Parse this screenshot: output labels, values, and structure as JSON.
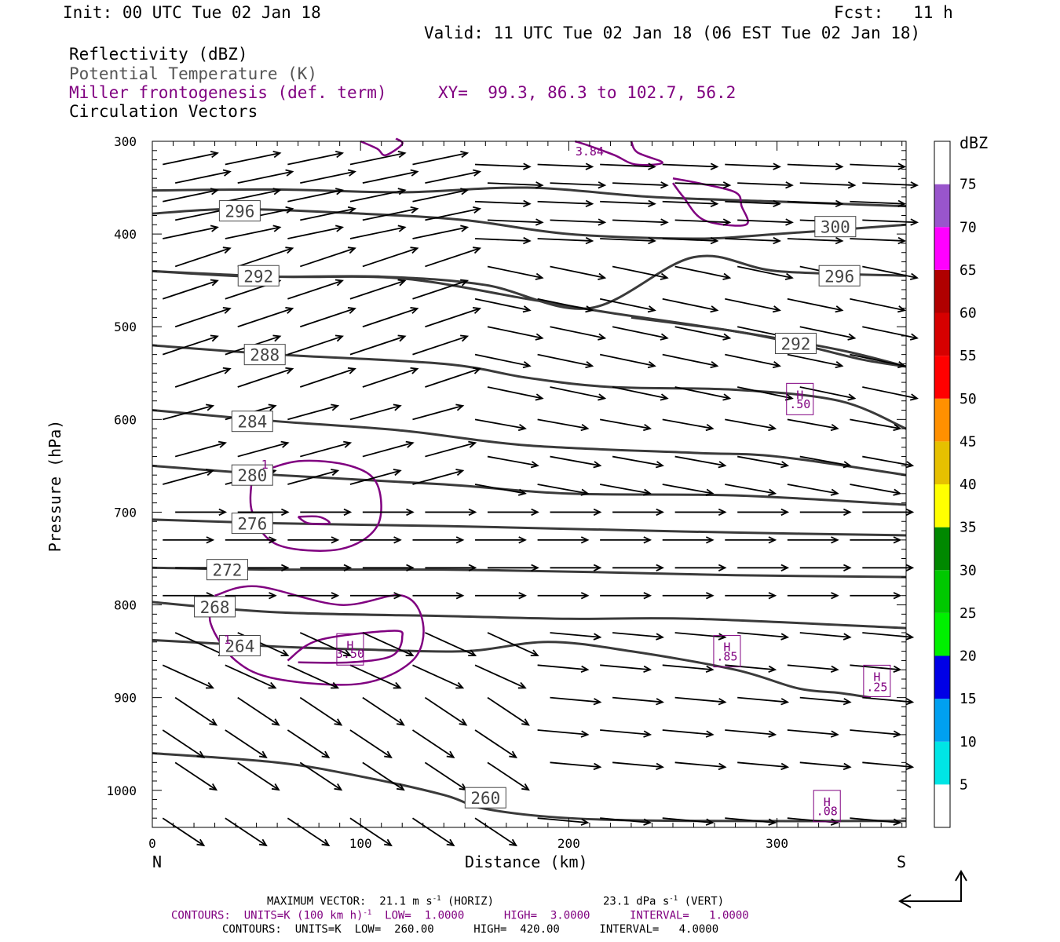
{
  "header": {
    "init": "Init: 00 UTC Tue 02 Jan 18",
    "fcst": "Fcst:   11 h",
    "valid": "Valid: 11 UTC Tue 02 Jan 18 (06 EST Tue 02 Jan 18)",
    "field1": "Reflectivity (dBZ)",
    "field2": "Potential Temperature (K)",
    "field3": "Miller frontogenesis (def. term)",
    "xy": "XY=  99.3, 86.3 to 102.7, 56.2",
    "field4": "Circulation Vectors"
  },
  "colors": {
    "theta": "#3a3a3a",
    "fronto": "#800080",
    "vector": "#000000",
    "subtitle_gray": "#555555"
  },
  "footer": {
    "max_vector": "MAXIMUM VECTOR:  21.1 m s",
    "max_vector_unit_sup": "-1",
    "horiz": " (HORIZ)",
    "vert_value": "23.1 dPa s",
    "vert_unit_sup": "-1",
    "vert": " (VERT)",
    "contours_purple_a": "CONTOURS:  UNITS=K (100 km h)",
    "contours_purple_sup": "-1",
    "contours_purple_b": "  LOW=  1.0000      HIGH=  3.0000      INTERVAL=   1.0000",
    "contours_black": "CONTOURS:  UNITS=K  LOW=  260.00      HIGH=  420.00      INTERVAL=   4.0000"
  },
  "chart_data": {
    "type": "contour",
    "ylabel": "Pressure (hPa)",
    "xlabel": "Distance (km)",
    "x_left_label": "N",
    "x_right_label": "S",
    "xlim": [
      0,
      362
    ],
    "ylim": [
      1040,
      300
    ],
    "x_ticks": [
      0,
      100,
      200,
      300
    ],
    "y_ticks": [
      300,
      400,
      500,
      600,
      700,
      800,
      900,
      1000
    ],
    "colorbar": {
      "title": "dBZ",
      "levels": [
        5,
        10,
        15,
        20,
        25,
        30,
        35,
        40,
        45,
        50,
        55,
        60,
        65,
        70,
        75
      ],
      "colors": [
        "#ffffff",
        "#00e5e5",
        "#00a0f0",
        "#0000e6",
        "#00f000",
        "#00c800",
        "#008800",
        "#ffff00",
        "#e6c000",
        "#ff9000",
        "#ff0000",
        "#d60000",
        "#b00000",
        "#ff00ff",
        "#9955cc",
        "#ffffff"
      ]
    },
    "theta_contours": [
      {
        "value": 296,
        "label_x": 42,
        "label_y": 375,
        "points": [
          [
            0,
            378
          ],
          [
            40,
            373
          ],
          [
            100,
            378
          ],
          [
            150,
            385
          ],
          [
            200,
            400
          ],
          [
            260,
            405
          ],
          [
            300,
            400
          ],
          [
            362,
            390
          ]
        ]
      },
      {
        "value": 300,
        "label_x": 328,
        "label_y": 392,
        "points": [
          [
            0,
            353
          ],
          [
            60,
            352
          ],
          [
            120,
            355
          ],
          [
            180,
            350
          ],
          [
            240,
            360
          ],
          [
            300,
            365
          ],
          [
            362,
            370
          ]
        ]
      },
      {
        "value": 296,
        "label_x": 330,
        "label_y": 445,
        "points": [
          [
            0,
            440
          ],
          [
            50,
            446
          ],
          [
            110,
            446
          ],
          [
            160,
            455
          ],
          [
            210,
            480
          ],
          [
            260,
            425
          ],
          [
            300,
            440
          ],
          [
            362,
            445
          ]
        ]
      },
      {
        "value": 292,
        "label_x": 51,
        "label_y": 445,
        "points": [
          [
            0,
            440
          ],
          [
            60,
            446
          ],
          [
            120,
            448
          ],
          [
            180,
            470
          ],
          [
            220,
            485
          ],
          [
            280,
            505
          ],
          [
            330,
            525
          ],
          [
            362,
            543
          ]
        ]
      },
      {
        "value": 292,
        "label_x": 309,
        "label_y": 518,
        "points": [
          [
            230,
            490
          ],
          [
            280,
            505
          ],
          [
            309,
            518
          ],
          [
            340,
            535
          ],
          [
            362,
            543
          ]
        ]
      },
      {
        "value": 288,
        "label_x": 54,
        "label_y": 530,
        "points": [
          [
            0,
            520
          ],
          [
            60,
            530
          ],
          [
            140,
            540
          ],
          [
            180,
            555
          ],
          [
            220,
            565
          ],
          [
            280,
            568
          ],
          [
            330,
            580
          ],
          [
            362,
            610
          ]
        ]
      },
      {
        "value": 284,
        "label_x": 48,
        "label_y": 602,
        "points": [
          [
            0,
            590
          ],
          [
            60,
            602
          ],
          [
            120,
            612
          ],
          [
            180,
            628
          ],
          [
            260,
            636
          ],
          [
            300,
            640
          ],
          [
            362,
            660
          ]
        ]
      },
      {
        "value": 280,
        "label_x": 48,
        "label_y": 660,
        "points": [
          [
            0,
            650
          ],
          [
            60,
            660
          ],
          [
            140,
            670
          ],
          [
            200,
            680
          ],
          [
            280,
            682
          ],
          [
            362,
            692
          ]
        ]
      },
      {
        "value": 276,
        "label_x": 48,
        "label_y": 712,
        "points": [
          [
            0,
            708
          ],
          [
            60,
            712
          ],
          [
            140,
            715
          ],
          [
            200,
            718
          ],
          [
            280,
            722
          ],
          [
            362,
            725
          ]
        ]
      },
      {
        "value": 272,
        "label_x": 36,
        "label_y": 762,
        "points": [
          [
            0,
            760
          ],
          [
            60,
            762
          ],
          [
            140,
            762
          ],
          [
            220,
            765
          ],
          [
            280,
            768
          ],
          [
            362,
            770
          ]
        ]
      },
      {
        "value": 268,
        "label_x": 30,
        "label_y": 802,
        "points": [
          [
            0,
            797
          ],
          [
            60,
            808
          ],
          [
            140,
            812
          ],
          [
            200,
            815
          ],
          [
            260,
            815
          ],
          [
            362,
            825
          ]
        ]
      },
      {
        "value": 264,
        "label_x": 42,
        "label_y": 844,
        "points": [
          [
            0,
            838
          ],
          [
            60,
            845
          ],
          [
            100,
            848
          ],
          [
            150,
            850
          ],
          [
            190,
            840
          ],
          [
            230,
            850
          ],
          [
            280,
            870
          ],
          [
            310,
            890
          ],
          [
            330,
            895
          ],
          [
            345,
            900
          ]
        ]
      },
      {
        "value": 260,
        "label_x": 160,
        "label_y": 1008,
        "points": [
          [
            0,
            960
          ],
          [
            60,
            970
          ],
          [
            100,
            985
          ],
          [
            140,
            1005
          ],
          [
            160,
            1020
          ],
          [
            200,
            1030
          ],
          [
            260,
            1033
          ],
          [
            362,
            1033
          ]
        ]
      }
    ],
    "fronto_contours_labels": [
      {
        "text": "3.84",
        "x": 210,
        "y": 310
      },
      {
        "text": "1",
        "x": 54,
        "y": 648
      },
      {
        "text": "1",
        "x": 36,
        "y": 837
      },
      {
        "text": "H",
        "x": 95,
        "y": 843
      },
      {
        "text": "3.50",
        "x": 95,
        "y": 852
      },
      {
        "text": "H",
        "x": 311,
        "y": 573
      },
      {
        "text": ".50",
        "x": 311,
        "y": 583
      },
      {
        "text": "H",
        "x": 276,
        "y": 845
      },
      {
        "text": ".85",
        "x": 276,
        "y": 855
      },
      {
        "text": "H",
        "x": 348,
        "y": 877
      },
      {
        "text": ".25",
        "x": 348,
        "y": 888
      },
      {
        "text": "H",
        "x": 324,
        "y": 1012
      },
      {
        "text": ".08",
        "x": 324,
        "y": 1022
      }
    ]
  }
}
